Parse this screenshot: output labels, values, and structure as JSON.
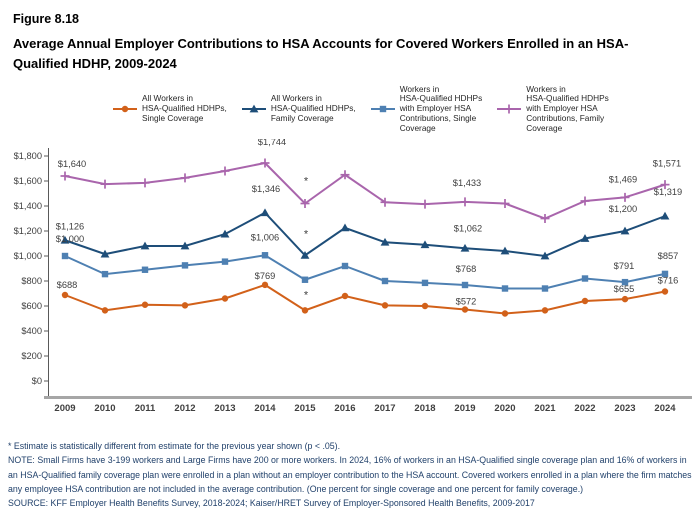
{
  "figure": {
    "number": "Figure 8.18",
    "title": "Average Annual Employer Contributions to HSA Accounts for Covered Workers Enrolled in an HSA-Qualified HDHP, 2009-2024"
  },
  "legend": {
    "items": [
      {
        "marker": "circle",
        "color": "#D2611A",
        "label_lines": [
          "All Workers in",
          "HSA-Qualified HDHPs,",
          "Single Coverage"
        ]
      },
      {
        "marker": "triangle",
        "color": "#1E4E79",
        "label_lines": [
          "All Workers in",
          "HSA-Qualified HDHPs,",
          "Family Coverage"
        ]
      },
      {
        "marker": "square",
        "color": "#4E80B2",
        "label_lines": [
          "Workers in",
          "HSA-Qualified HDHPs",
          "with Employer HSA",
          "Contributions, Single",
          "Coverage"
        ]
      },
      {
        "marker": "plus",
        "color": "#A965AC",
        "label_lines": [
          "Workers in",
          "HSA-Qualified HDHPs",
          "with Employer HSA",
          "Contributions, Family",
          "Coverage"
        ]
      }
    ]
  },
  "chart_data": {
    "type": "line",
    "x": [
      2009,
      2010,
      2011,
      2012,
      2013,
      2014,
      2015,
      2016,
      2017,
      2018,
      2019,
      2020,
      2021,
      2022,
      2023,
      2024
    ],
    "ylim": [
      0,
      1800
    ],
    "ytick_step": 200,
    "ytick_labels": [
      "$0",
      "$200",
      "$400",
      "$600",
      "$800",
      "$1,000",
      "$1,200",
      "$1,400",
      "$1,600",
      "$1,800"
    ],
    "grid": false,
    "legend_position": "top",
    "series": [
      {
        "name": "All Workers in HSA-Qualified HDHPs, Single Coverage",
        "marker": "circle",
        "color": "#D2611A",
        "values": [
          688,
          565,
          610,
          605,
          660,
          769,
          565,
          680,
          605,
          600,
          572,
          540,
          565,
          640,
          655,
          716
        ],
        "value_labels": {
          "2009": "$688",
          "2014": "$769",
          "2019": "$572",
          "2023": "$655",
          "2024": "$716"
        },
        "asterisk_years": [
          2015
        ]
      },
      {
        "name": "All Workers in HSA-Qualified HDHPs, Family Coverage",
        "marker": "triangle",
        "color": "#1E4E79",
        "values": [
          1126,
          1015,
          1080,
          1080,
          1175,
          1346,
          1005,
          1225,
          1110,
          1090,
          1062,
          1040,
          1000,
          1140,
          1200,
          1319
        ],
        "value_labels": {
          "2009": "$1,126",
          "2014": "$1,346",
          "2019": "$1,062",
          "2023": "$1,200",
          "2024": "$1,319"
        },
        "asterisk_years": [
          2015
        ]
      },
      {
        "name": "Workers in HSA-Qualified HDHPs with Employer HSA Contributions, Single Coverage",
        "marker": "square",
        "color": "#4E80B2",
        "values": [
          1000,
          855,
          890,
          925,
          955,
          1006,
          810,
          920,
          800,
          785,
          768,
          740,
          740,
          820,
          791,
          857
        ],
        "value_labels": {
          "2009": "$1,000",
          "2014": "$1,006",
          "2019": "$768",
          "2023": "$791",
          "2024": "$857"
        },
        "asterisk_years": []
      },
      {
        "name": "Workers in HSA-Qualified HDHPs with Employer HSA Contributions, Family Coverage",
        "marker": "plus",
        "color": "#A965AC",
        "values": [
          1640,
          1575,
          1585,
          1625,
          1680,
          1744,
          1420,
          1650,
          1430,
          1415,
          1433,
          1420,
          1300,
          1440,
          1469,
          1571
        ],
        "value_labels": {
          "2009": "$1,640",
          "2014": "$1,744",
          "2019": "$1,433",
          "2023": "$1,469",
          "2024": "$1,571"
        },
        "asterisk_years": [
          2015
        ]
      }
    ]
  },
  "footnotes": {
    "asterisk": "* Estimate is statistically different from estimate for the previous year shown (p < .05).",
    "note": "NOTE: Small Firms have 3-199 workers and Large Firms have 200 or more workers. In 2024, 16% of workers in an HSA-Qualified single coverage plan and 16% of workers in an HSA-Qualified family coverage plan were enrolled in a plan without an employer contribution to the HSA account. Covered workers enrolled in a plan where the firm matches any employee HSA contribution are not included in the average contribution. (One percent for single coverage and one percent for family coverage.)",
    "source": "SOURCE: KFF Employer Health Benefits Survey, 2018-2024; Kaiser/HRET Survey of Employer-Sponsored Health Benefits, 2009-2017"
  },
  "colors": {
    "axis_text": "#404040",
    "x_axis_line": "#A6A6A6",
    "y_axis_line": "#595959",
    "data_label_text": "#404040",
    "footnote_text": "#21416B"
  }
}
